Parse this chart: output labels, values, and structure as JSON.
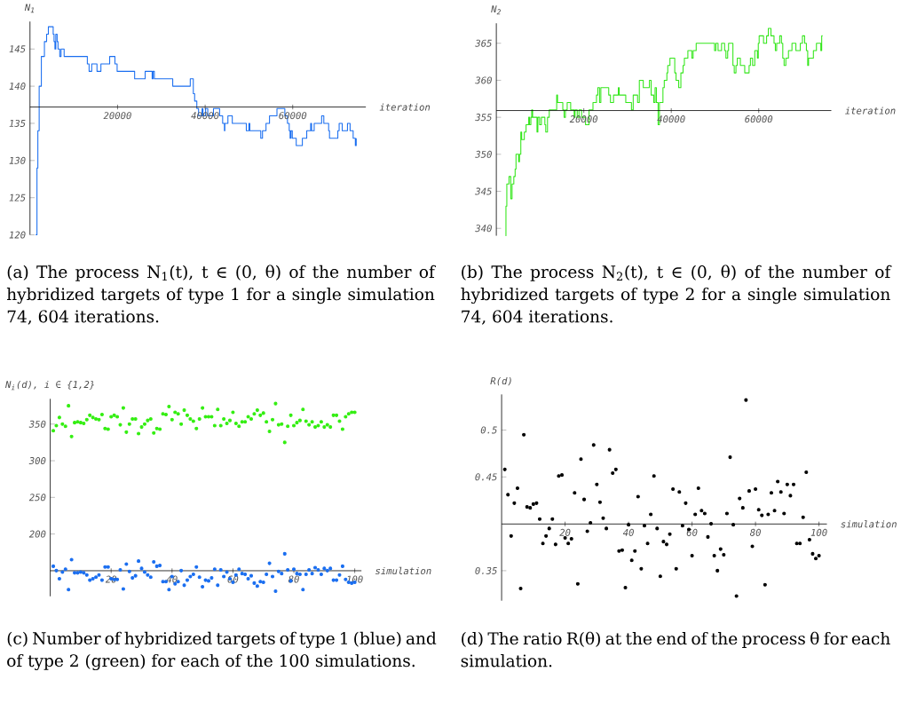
{
  "chart_data": [
    {
      "type": "step",
      "color": "#1a6ef0",
      "xlim": [
        0,
        76700
      ],
      "ylim": [
        120,
        148.7
      ],
      "xticks": [
        20000,
        40000,
        60000
      ],
      "yticks": [
        120,
        125,
        130,
        135,
        140,
        145
      ],
      "xlabel": "iteration",
      "ylabel": "N$_{1}$",
      "annotations": [
        "(a) The process N$_{1}$(t), t ∈ (0, θ) of the number of hybridized targets of type 1 for a single simulation 74, 604 iterations."
      ],
      "x": [
        1300,
        1600,
        1800,
        2100,
        2600,
        3300,
        3800,
        4200,
        5300,
        5500,
        5700,
        5900,
        6200,
        6400,
        6800,
        7100,
        7800,
        13100,
        13500,
        14100,
        15300,
        16200,
        18200,
        19400,
        19900,
        23900,
        26300,
        27900,
        28100,
        28400,
        32600,
        36600,
        37300,
        37600,
        38100,
        38500,
        39300,
        39500,
        40100,
        40600,
        41900,
        43300,
        44000,
        44400,
        44500,
        45200,
        46200,
        49400,
        50000,
        50200,
        52700,
        53100,
        53900,
        54700,
        56400,
        58200,
        58800,
        59200,
        59400,
        59600,
        59900,
        60800,
        62200,
        63200,
        64100,
        64300,
        64900,
        66600,
        67100,
        68200,
        68400,
        70300,
        70600,
        71300,
        72500,
        73100,
        73800,
        74300,
        74500
      ],
      "values": [
        120,
        129,
        134,
        140,
        144,
        146,
        147,
        148,
        147,
        146,
        145,
        147,
        146,
        145,
        144,
        145,
        144,
        143,
        142,
        143,
        142,
        143,
        144,
        143,
        142,
        141,
        142,
        141,
        142,
        141,
        140,
        141,
        139,
        138,
        137,
        136,
        137,
        136,
        137,
        136,
        137,
        136,
        135,
        134,
        135,
        136,
        135,
        134,
        135,
        134,
        133,
        134,
        135,
        136,
        137,
        136,
        135,
        134,
        133,
        134,
        133,
        132,
        133,
        134,
        135,
        134,
        135,
        136,
        135,
        134,
        133,
        134,
        135,
        134,
        135,
        134,
        133,
        132,
        133
      ]
    },
    {
      "type": "step",
      "color": "#33e61a",
      "xlim": [
        0,
        76600
      ],
      "ylim": [
        339,
        367.7
      ],
      "xticks": [
        20000,
        40000,
        60000
      ],
      "yticks": [
        340,
        345,
        350,
        355,
        360,
        365
      ],
      "xlabel": "iteration",
      "ylabel": "N$_{2}$",
      "annotations": [
        "(b) The process N$_{2}$(t), t ∈ (0, θ) of the number of hybridized targets of type 2 for a single simulation 74, 604 iterations."
      ],
      "x": [
        2100,
        2200,
        2400,
        2900,
        3300,
        3600,
        4000,
        4300,
        4500,
        5100,
        5300,
        5600,
        5800,
        6400,
        6800,
        7400,
        7600,
        7900,
        8100,
        8300,
        9300,
        9500,
        9900,
        10300,
        11100,
        11300,
        11700,
        12100,
        13800,
        14000,
        15200,
        15500,
        15800,
        16200,
        17000,
        17800,
        18000,
        18500,
        18900,
        19500,
        20400,
        21200,
        22100,
        22900,
        23200,
        23600,
        23900,
        25700,
        26100,
        26800,
        27900,
        28100,
        29600,
        30900,
        31300,
        32300,
        32700,
        33600,
        35000,
        35400,
        36000,
        36300,
        36600,
        37000,
        37300,
        38100,
        38400,
        39000,
        39200,
        39700,
        40800,
        41100,
        41700,
        42200,
        42700,
        43000,
        43800,
        44700,
        45000,
        45700,
        49900,
        50200,
        50700,
        51500,
        52200,
        52500,
        52900,
        53100,
        54100,
        54400,
        54800,
        55100,
        55800,
        56800,
        57800,
        58100,
        58600,
        59100,
        59700,
        59900,
        60100,
        61100,
        61800,
        62200,
        62800,
        63500,
        63800,
        64100,
        64800,
        65200,
        65500,
        65800,
        66200,
        66800,
        67600,
        68500,
        69500,
        70000,
        70500,
        70900,
        71200,
        71400,
        72500,
        73200,
        74200,
        74400,
        74600
      ],
      "values": [
        339,
        343,
        346,
        347,
        344,
        346,
        347,
        348,
        350,
        349,
        350,
        353,
        352,
        353,
        354,
        355,
        354,
        355,
        356,
        355,
        353,
        355,
        354,
        355,
        354,
        353,
        355,
        356,
        358,
        357,
        356,
        355,
        356,
        357,
        356,
        355,
        356,
        355,
        356,
        355,
        354,
        356,
        357,
        358,
        359,
        357,
        359,
        358,
        357,
        358,
        359,
        358,
        357,
        356,
        358,
        357,
        360,
        359,
        360,
        358,
        357,
        359,
        357,
        354,
        357,
        359,
        360,
        361,
        362,
        363,
        361,
        360,
        359,
        361,
        362,
        363,
        364,
        363,
        364,
        365,
        364,
        365,
        364,
        365,
        364,
        363,
        364,
        365,
        362,
        361,
        362,
        363,
        362,
        361,
        362,
        363,
        362,
        364,
        363,
        365,
        366,
        365,
        366,
        367,
        366,
        365,
        364,
        365,
        366,
        365,
        363,
        362,
        363,
        364,
        365,
        364,
        365,
        366,
        365,
        364,
        362,
        363,
        364,
        365,
        364,
        366,
        366
      ]
    },
    {
      "type": "scatter",
      "marker": "circle",
      "xlim": [
        0,
        102.2
      ],
      "ylim": [
        115,
        384.5
      ],
      "xticks": [
        20,
        40,
        60,
        80,
        100
      ],
      "yticks": [
        200,
        250,
        300,
        350
      ],
      "xlabel": "simulation",
      "ylabel": "N$_{i}$(d), i ∈ {1,2}",
      "annotations": [
        "(c) Number of hybridized targets of type 1 (blue) and of type 2 (green) for each of the 100 simulations."
      ],
      "x": [
        1,
        2,
        3,
        4,
        5,
        6,
        7,
        8,
        9,
        10,
        11,
        12,
        13,
        14,
        15,
        16,
        17,
        18,
        19,
        20,
        21,
        22,
        23,
        24,
        25,
        26,
        27,
        28,
        29,
        30,
        31,
        32,
        33,
        34,
        35,
        36,
        37,
        38,
        39,
        40,
        41,
        42,
        43,
        44,
        45,
        46,
        47,
        48,
        49,
        50,
        51,
        52,
        53,
        54,
        55,
        56,
        57,
        58,
        59,
        60,
        61,
        62,
        63,
        64,
        65,
        66,
        67,
        68,
        69,
        70,
        71,
        72,
        73,
        74,
        75,
        76,
        77,
        78,
        79,
        80,
        81,
        82,
        83,
        84,
        85,
        86,
        87,
        88,
        89,
        90,
        91,
        92,
        93,
        94,
        95,
        96,
        97,
        98,
        99,
        100
      ],
      "series": [
        {
          "color": "#33ee11",
          "values": [
            341,
            348,
            359,
            350,
            347,
            375,
            333,
            352,
            353,
            352,
            351,
            356,
            362,
            359,
            357,
            356,
            363,
            344,
            343,
            360,
            362,
            360,
            349,
            372,
            339,
            350,
            357,
            357,
            337,
            346,
            350,
            355,
            357,
            338,
            344,
            343,
            364,
            363,
            374,
            356,
            366,
            364,
            350,
            369,
            362,
            357,
            354,
            344,
            357,
            372,
            360,
            360,
            360,
            348,
            370,
            348,
            357,
            351,
            355,
            366,
            351,
            347,
            353,
            353,
            360,
            357,
            364,
            369,
            362,
            365,
            353,
            340,
            356,
            378,
            349,
            350,
            325,
            347,
            362,
            348,
            352,
            355,
            370,
            354,
            349,
            353,
            346,
            348,
            353,
            346,
            349,
            346,
            362,
            362,
            354,
            343,
            360,
            364,
            366,
            366
          ]
        },
        {
          "color": "#1a6ef0",
          "values": [
            156,
            150,
            139,
            148,
            152,
            124,
            165,
            147,
            147,
            148,
            147,
            144,
            137,
            139,
            141,
            144,
            137,
            155,
            155,
            139,
            138,
            138,
            151,
            125,
            159,
            149,
            140,
            143,
            163,
            153,
            148,
            144,
            141,
            162,
            156,
            157,
            135,
            135,
            124,
            142,
            132,
            135,
            150,
            130,
            137,
            142,
            145,
            155,
            141,
            128,
            137,
            136,
            140,
            152,
            130,
            151,
            142,
            148,
            139,
            134,
            144,
            152,
            146,
            145,
            139,
            143,
            133,
            129,
            135,
            134,
            145,
            160,
            142,
            122,
            149,
            146,
            173,
            151,
            136,
            152,
            146,
            145,
            124,
            145,
            151,
            146,
            154,
            151,
            145,
            153,
            150,
            153,
            137,
            137,
            144,
            156,
            138,
            134,
            133,
            134
          ]
        }
      ]
    },
    {
      "type": "scatter",
      "marker": "circle",
      "color": "#000000",
      "xlim": [
        0,
        102.5
      ],
      "ylim": [
        0.318,
        0.538
      ],
      "xticks": [
        20,
        40,
        60,
        80,
        100
      ],
      "yticks": [
        0.35,
        0.45,
        0.5
      ],
      "xlabel": "simulation",
      "ylabel": "R(d)",
      "annotations": [
        "(d) The ratio R(θ) at the end of the process θ for each simulation."
      ],
      "x": [
        1,
        2,
        3,
        4,
        5,
        6,
        7,
        8,
        9,
        10,
        11,
        12,
        13,
        14,
        15,
        16,
        17,
        18,
        19,
        20,
        21,
        22,
        23,
        24,
        25,
        26,
        27,
        28,
        29,
        30,
        31,
        32,
        33,
        34,
        35,
        36,
        37,
        38,
        39,
        40,
        41,
        42,
        43,
        44,
        45,
        46,
        47,
        48,
        49,
        50,
        51,
        52,
        53,
        54,
        55,
        56,
        57,
        58,
        59,
        60,
        61,
        62,
        63,
        64,
        65,
        66,
        67,
        68,
        69,
        70,
        71,
        72,
        73,
        74,
        75,
        76,
        77,
        78,
        79,
        80,
        81,
        82,
        83,
        84,
        85,
        86,
        87,
        88,
        89,
        90,
        91,
        92,
        93,
        94,
        95,
        96,
        97,
        98,
        99,
        100
      ],
      "values": [
        0.458,
        0.431,
        0.387,
        0.422,
        0.438,
        0.331,
        0.495,
        0.418,
        0.417,
        0.421,
        0.422,
        0.405,
        0.379,
        0.387,
        0.395,
        0.405,
        0.378,
        0.451,
        0.452,
        0.385,
        0.379,
        0.384,
        0.433,
        0.336,
        0.469,
        0.426,
        0.392,
        0.401,
        0.484,
        0.442,
        0.423,
        0.406,
        0.395,
        0.479,
        0.454,
        0.458,
        0.371,
        0.372,
        0.332,
        0.399,
        0.361,
        0.371,
        0.429,
        0.352,
        0.398,
        0.379,
        0.41,
        0.451,
        0.395,
        0.344,
        0.381,
        0.378,
        0.389,
        0.437,
        0.352,
        0.434,
        0.398,
        0.422,
        0.394,
        0.366,
        0.41,
        0.438,
        0.414,
        0.411,
        0.386,
        0.4,
        0.366,
        0.35,
        0.373,
        0.367,
        0.411,
        0.471,
        0.399,
        0.323,
        0.427,
        0.417,
        0.532,
        0.435,
        0.376,
        0.437,
        0.415,
        0.409,
        0.335,
        0.41,
        0.433,
        0.414,
        0.445,
        0.434,
        0.411,
        0.442,
        0.43,
        0.442,
        0.379,
        0.379,
        0.407,
        0.455,
        0.383,
        0.368,
        0.363,
        0.366
      ]
    }
  ]
}
